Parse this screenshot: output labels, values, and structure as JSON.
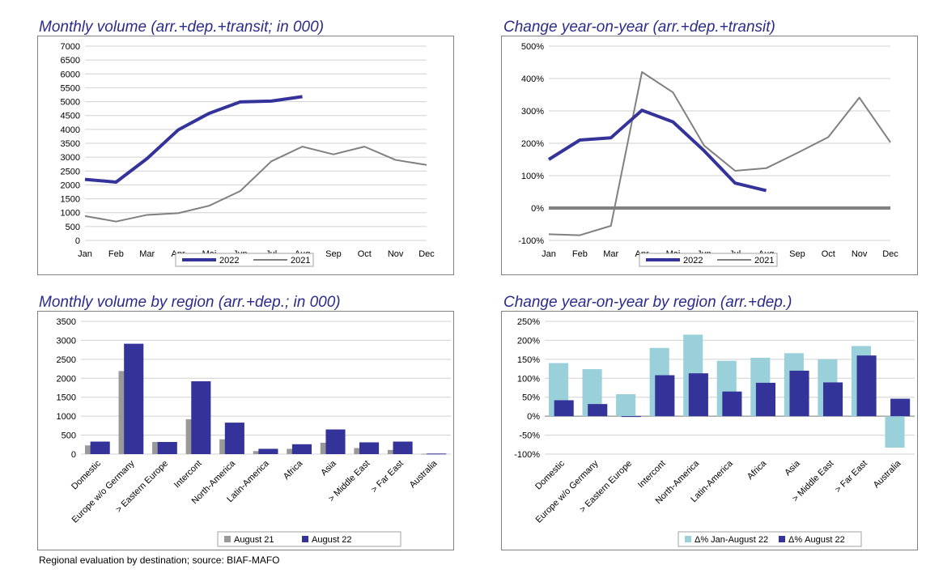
{
  "footer_note": "Regional evaluation by destination; source: BIAF-MAFO",
  "colors": {
    "title": "#2b2b8c",
    "series_2022": "#333399",
    "series_2021": "#808080",
    "aug21": "#999999",
    "aug22": "#333399",
    "jan_aug22": "#99d0da",
    "grid": "#d0d0d0",
    "zero_line": "#808080"
  },
  "chart_data": [
    {
      "id": "monthly-volume",
      "type": "line",
      "title": "Monthly volume (arr.+dep.+transit; in 000)",
      "x": [
        "Jan",
        "Feb",
        "Mar",
        "Apr",
        "Mai",
        "Jun",
        "Jul",
        "Aug",
        "Sep",
        "Oct",
        "Nov",
        "Dec"
      ],
      "yticks": [
        "0",
        "500",
        "1000",
        "1500",
        "2000",
        "2500",
        "3000",
        "3500",
        "4000",
        "4500",
        "5000",
        "5500",
        "6000",
        "6500",
        "7000"
      ],
      "ylim": [
        0,
        7000
      ],
      "grid": true,
      "legend_position": "bottom",
      "series": [
        {
          "name": "2022",
          "values": [
            2200,
            2100,
            2950,
            3980,
            4580,
            4990,
            5020,
            5180,
            null,
            null,
            null,
            null
          ]
        },
        {
          "name": "2021",
          "values": [
            880,
            680,
            920,
            980,
            1250,
            1780,
            2850,
            3380,
            3100,
            3380,
            2900,
            2720
          ]
        }
      ]
    },
    {
      "id": "change-yoy",
      "type": "line",
      "title": "Change year-on-year (arr.+dep.+transit)",
      "x": [
        "Jan",
        "Feb",
        "Mar",
        "Apr",
        "Mai",
        "Jun",
        "Jul",
        "Aug",
        "Sep",
        "Oct",
        "Nov",
        "Dec"
      ],
      "yticks": [
        "-100%",
        "0%",
        "100%",
        "200%",
        "300%",
        "400%",
        "500%"
      ],
      "ylim": [
        -100,
        500
      ],
      "grid": true,
      "legend_position": "bottom",
      "series": [
        {
          "name": "2022",
          "values": [
            150,
            210,
            217,
            302,
            266,
            177,
            77,
            54,
            null,
            null,
            null,
            null
          ]
        },
        {
          "name": "2021",
          "values": [
            -81,
            -84,
            -55,
            420,
            357,
            193,
            115,
            123,
            170,
            219,
            341,
            203
          ]
        }
      ]
    },
    {
      "id": "volume-by-region",
      "type": "bar",
      "title": "Monthly volume by region (arr.+dep.; in 000)",
      "categories": [
        "Domestic",
        "Europe w/o Germany",
        "> Eastern Europe",
        "Intercont",
        "North-America",
        "Latin-America",
        "Africa",
        "Asia",
        "> Middle East",
        "> Far East",
        "Australia"
      ],
      "yticks": [
        "0",
        "500",
        "1000",
        "1500",
        "2000",
        "2500",
        "3000",
        "3500"
      ],
      "ylim": [
        0,
        3500
      ],
      "grid": true,
      "legend_position": "bottom-right",
      "series": [
        {
          "name": "August 21",
          "values": [
            230,
            2190,
            320,
            920,
            390,
            80,
            140,
            300,
            160,
            110,
            10
          ]
        },
        {
          "name": "August 22",
          "values": [
            330,
            2910,
            320,
            1920,
            830,
            140,
            260,
            650,
            310,
            330,
            15
          ]
        }
      ]
    },
    {
      "id": "change-by-region",
      "type": "bar",
      "title": "Change year-on-year by region (arr.+dep.)",
      "categories": [
        "Domestic",
        "Europe w/o Germany",
        "> Eastern Europe",
        "Intercont",
        "North-America",
        "Latin-America",
        "Africa",
        "Asia",
        "> Middle East",
        "> Far East",
        "Australia"
      ],
      "yticks": [
        "-100%",
        "-50%",
        "0%",
        "50%",
        "100%",
        "150%",
        "200%",
        "250%"
      ],
      "ylim": [
        -100,
        250
      ],
      "grid": true,
      "legend_position": "bottom-right",
      "series": [
        {
          "name": "Δ% Jan-August 22",
          "values": [
            140,
            124,
            58,
            180,
            215,
            146,
            154,
            166,
            150,
            185,
            -83
          ]
        },
        {
          "name": "Δ% August 22",
          "values": [
            42,
            32,
            0,
            108,
            113,
            65,
            88,
            120,
            89,
            160,
            46
          ]
        }
      ]
    }
  ]
}
